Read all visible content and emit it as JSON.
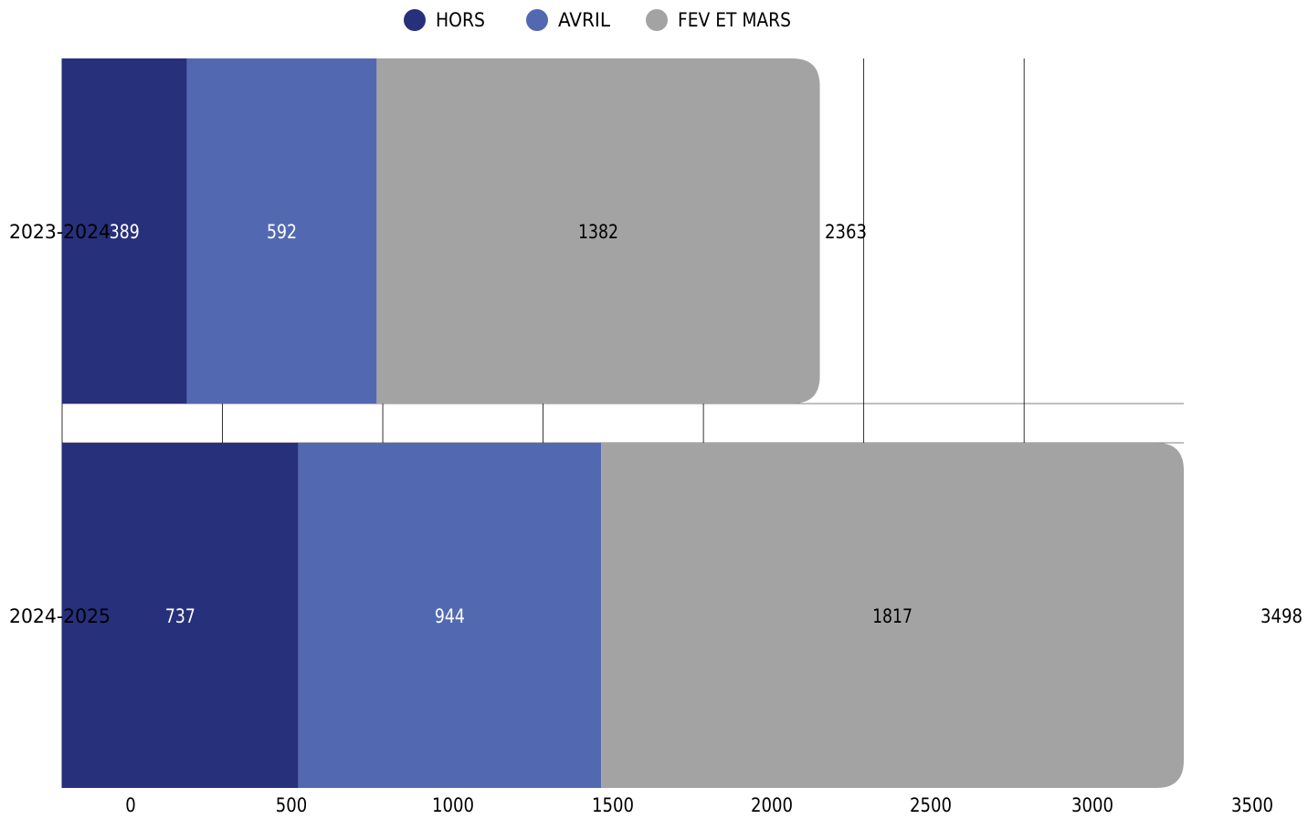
{
  "chart_data": {
    "type": "bar",
    "orientation": "horizontal",
    "stacked": true,
    "categories": [
      "2023-2024",
      "2024-2025"
    ],
    "series": [
      {
        "name": "HORS",
        "values": [
          389,
          737
        ],
        "color": "#27307b",
        "label_color": "#ffffff"
      },
      {
        "name": "AVRIL",
        "values": [
          592,
          944
        ],
        "color": "#5269b2",
        "label_color": "#ffffff"
      },
      {
        "name": "FEV ET MARS",
        "values": [
          1382,
          1817
        ],
        "color": "#a3a3a3",
        "label_color": "#000000"
      }
    ],
    "totals": [
      2363,
      3498
    ],
    "xlim": [
      0,
      3500
    ],
    "xticks": [
      "0",
      "500",
      "1000",
      "1500",
      "2000",
      "2500",
      "3000",
      "3500"
    ],
    "title": "",
    "xlabel": "",
    "ylabel": "",
    "grid": true,
    "legend_position": "top-center"
  }
}
